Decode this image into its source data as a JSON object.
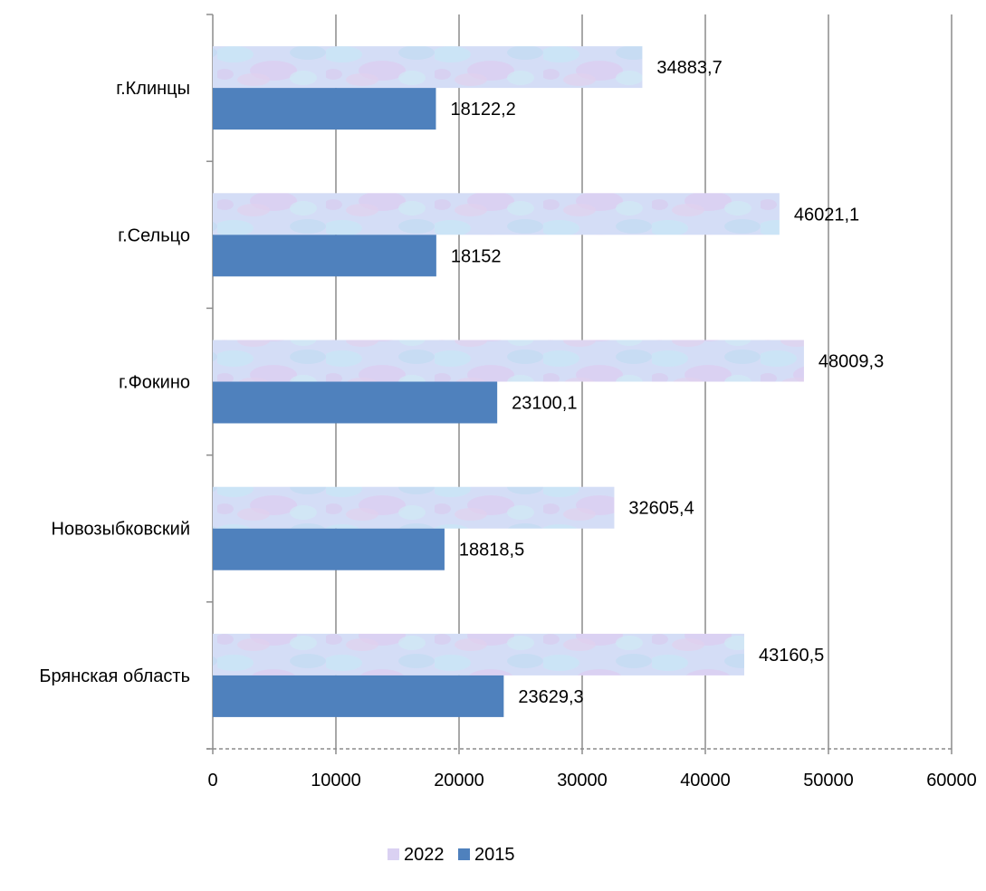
{
  "chart_data": {
    "type": "bar",
    "orientation": "horizontal",
    "categories": [
      "г.Клинцы",
      "г.Сельцо",
      "г.Фокино",
      "Новозыбковский",
      "Брянская область"
    ],
    "series": [
      {
        "name": "2022",
        "values": [
          34883.7,
          46021.1,
          48009.3,
          32605.4,
          43160.5
        ],
        "labels": [
          "34883,7",
          "46021,1",
          "48009,3",
          "32605,4",
          "43160,5"
        ],
        "color": "#cfd9f5"
      },
      {
        "name": "2015",
        "values": [
          18122.2,
          18152,
          23100.1,
          18818.5,
          23629.3
        ],
        "labels": [
          "18122,2",
          "18152",
          "23100,1",
          "18818,5",
          "23629,3"
        ],
        "color": "#4f81bd"
      }
    ],
    "xlim": [
      0,
      60000
    ],
    "x_ticks": [
      0,
      10000,
      20000,
      30000,
      40000,
      50000,
      60000
    ],
    "grid": true,
    "legend_position": "bottom"
  }
}
